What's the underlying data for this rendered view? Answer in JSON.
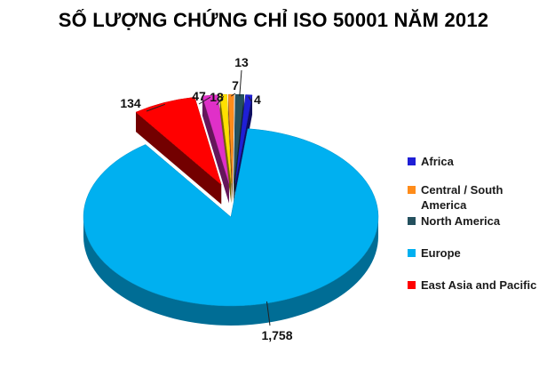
{
  "chart_data": {
    "type": "pie",
    "title": "SỐ LƯỢNG CHỨNG CHỈ ISO 50001 NĂM 2012",
    "categories": [
      "Africa",
      "Central / South America",
      "North America",
      "Europe",
      "East Asia and Pacific",
      "",
      "",
      ""
    ],
    "values": [
      4,
      7,
      13,
      1758,
      134,
      47,
      18,
      0
    ],
    "data_labels": [
      "4",
      "7",
      "13",
      "1,758",
      "134",
      "47",
      "18",
      ""
    ],
    "legend": [
      "Africa",
      "Central / South America",
      "North America",
      "Europe",
      "East Asia and Pacific"
    ],
    "legend_position": "right",
    "colors": [
      "#1f1fd6",
      "#ff8c1a",
      "#24505e",
      "#00b0f0",
      "#ff0000",
      "#e030c8",
      "#ffe000",
      "#9966cc"
    ],
    "three_d": true,
    "exploded": true
  }
}
